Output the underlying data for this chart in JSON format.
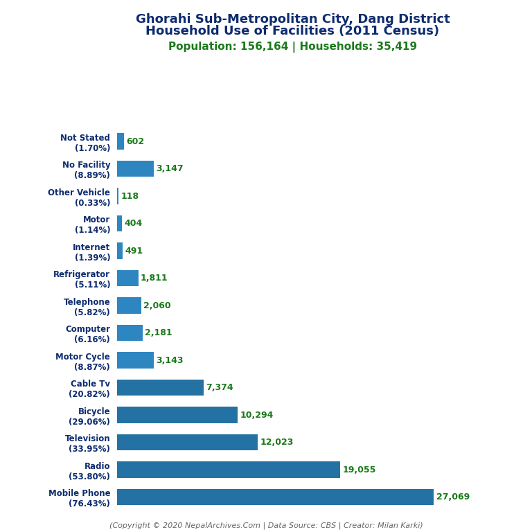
{
  "title_line1": "Ghorahi Sub-Metropolitan City, Dang District",
  "title_line2": "Household Use of Facilities (2011 Census)",
  "subtitle": "Population: 156,164 | Households: 35,419",
  "footer": "(Copyright © 2020 NepalArchives.Com | Data Source: CBS | Creator: Milan Karki)",
  "categories": [
    "Mobile Phone\n(76.43%)",
    "Radio\n(53.80%)",
    "Television\n(33.95%)",
    "Bicycle\n(29.06%)",
    "Cable Tv\n(20.82%)",
    "Motor Cycle\n(8.87%)",
    "Computer\n(6.16%)",
    "Telephone\n(5.82%)",
    "Refrigerator\n(5.11%)",
    "Internet\n(1.39%)",
    "Motor\n(1.14%)",
    "Other Vehicle\n(0.33%)",
    "No Facility\n(8.89%)",
    "Not Stated\n(1.70%)"
  ],
  "values": [
    27069,
    19055,
    12023,
    10294,
    7374,
    3143,
    2181,
    2060,
    1811,
    491,
    404,
    118,
    3147,
    602
  ],
  "value_labels": [
    "27,069",
    "19,055",
    "12,023",
    "10,294",
    "7,374",
    "3,143",
    "2,181",
    "2,060",
    "1,811",
    "491",
    "404",
    "118",
    "3,147",
    "602"
  ],
  "title_color": "#0d2b6e",
  "subtitle_color": "#1a7a1a",
  "value_color": "#1a7a1a",
  "footer_color": "#666666",
  "background_color": "#ffffff",
  "bar_color_large": "#2472a4",
  "bar_color_small": "#2e86c1",
  "xlim_max": 30000,
  "title_fontsize": 13,
  "subtitle_fontsize": 11,
  "label_fontsize": 8.5,
  "value_fontsize": 9
}
